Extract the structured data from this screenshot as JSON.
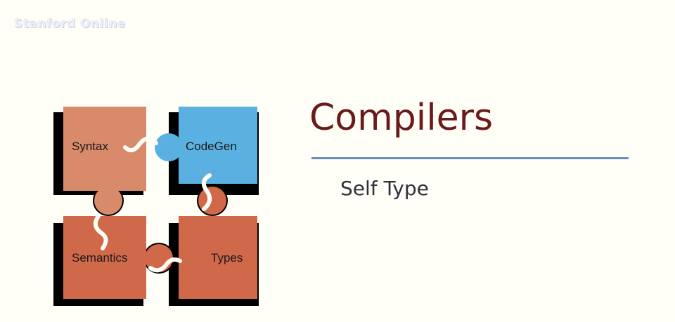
{
  "watermark": "Stanford Online",
  "slide": {
    "title": "Compilers",
    "subtitle": "Self Type"
  },
  "puzzle": {
    "pieces": [
      {
        "label": "Syntax",
        "color": "#d98a6a"
      },
      {
        "label": "CodeGen",
        "color": "#5ab0e0"
      },
      {
        "label": "Semantics",
        "color": "#d0684a"
      },
      {
        "label": "Types",
        "color": "#d0684a"
      }
    ]
  },
  "colors": {
    "background": "#fffff8",
    "title": "#6a1a1a",
    "rule": "#6b8fb8",
    "shadow": "#000000"
  }
}
